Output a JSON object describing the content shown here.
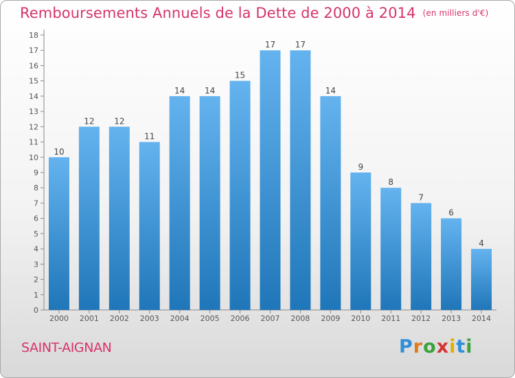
{
  "title": "Remboursements Annuels de la Dette de 2000 à 2014",
  "unit": "(en milliers d'€)",
  "town": "SAINT-AIGNAN",
  "logo": {
    "letters": [
      "P",
      "r",
      "o",
      "x",
      "i",
      "t",
      "i"
    ],
    "colors": [
      "#2f8fd8",
      "#e07a1a",
      "#3aa33a",
      "#d63333",
      "#e0b000",
      "#2f8fd8",
      "#3aa33a"
    ]
  },
  "colors": {
    "bar_top": "#64b3ef",
    "bar_bottom": "#1f76b8",
    "title": "#d6336c",
    "axis": "#555555"
  },
  "chart_data": {
    "type": "bar",
    "title": "Remboursements Annuels de la Dette de 2000 à 2014",
    "categories": [
      "2000",
      "2001",
      "2002",
      "2003",
      "2004",
      "2005",
      "2006",
      "2007",
      "2008",
      "2009",
      "2010",
      "2011",
      "2012",
      "2013",
      "2014"
    ],
    "values": [
      10,
      12,
      12,
      11,
      14,
      14,
      15,
      17,
      17,
      14,
      9,
      8,
      7,
      6,
      4
    ],
    "ylim": [
      0,
      18
    ],
    "yticks": [
      0,
      1,
      2,
      3,
      4,
      5,
      6,
      7,
      8,
      9,
      10,
      11,
      12,
      13,
      14,
      15,
      16,
      17,
      18
    ],
    "data_labels": true,
    "grid": false
  }
}
